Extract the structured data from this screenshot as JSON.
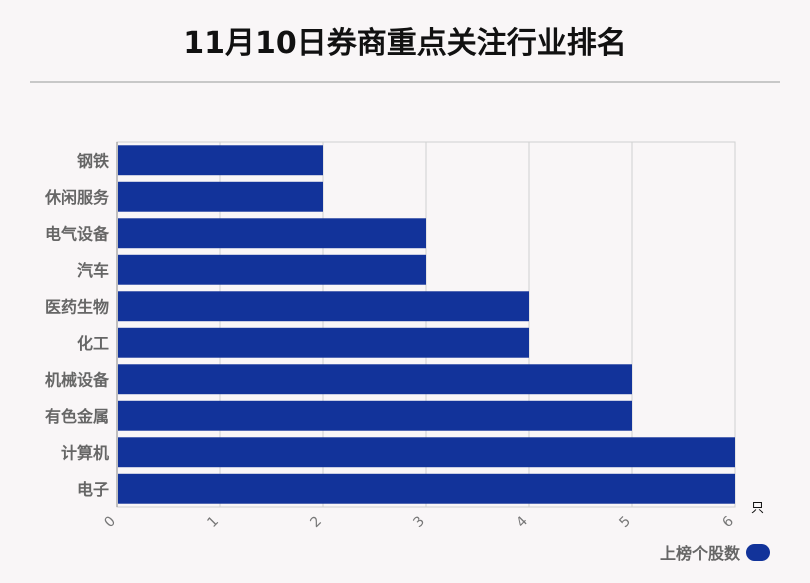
{
  "title": "11月10日券商重点关注行业排名",
  "chart_data": {
    "type": "bar",
    "orientation": "horizontal",
    "categories": [
      "钢铁",
      "休闲服务",
      "电气设备",
      "汽车",
      "医药生物",
      "化工",
      "机械设备",
      "有色金属",
      "计算机",
      "电子"
    ],
    "series": [
      {
        "name": "上榜个股数",
        "values": [
          2,
          2,
          3,
          3,
          4,
          4,
          5,
          5,
          6,
          6
        ]
      }
    ],
    "xlim": [
      0,
      6
    ],
    "xticks": [
      "0",
      "1",
      "2",
      "3",
      "4",
      "5",
      "6"
    ],
    "x_unit": "只",
    "grid": true,
    "legend_position": "bottom-right",
    "bar_color": "#12339a"
  }
}
